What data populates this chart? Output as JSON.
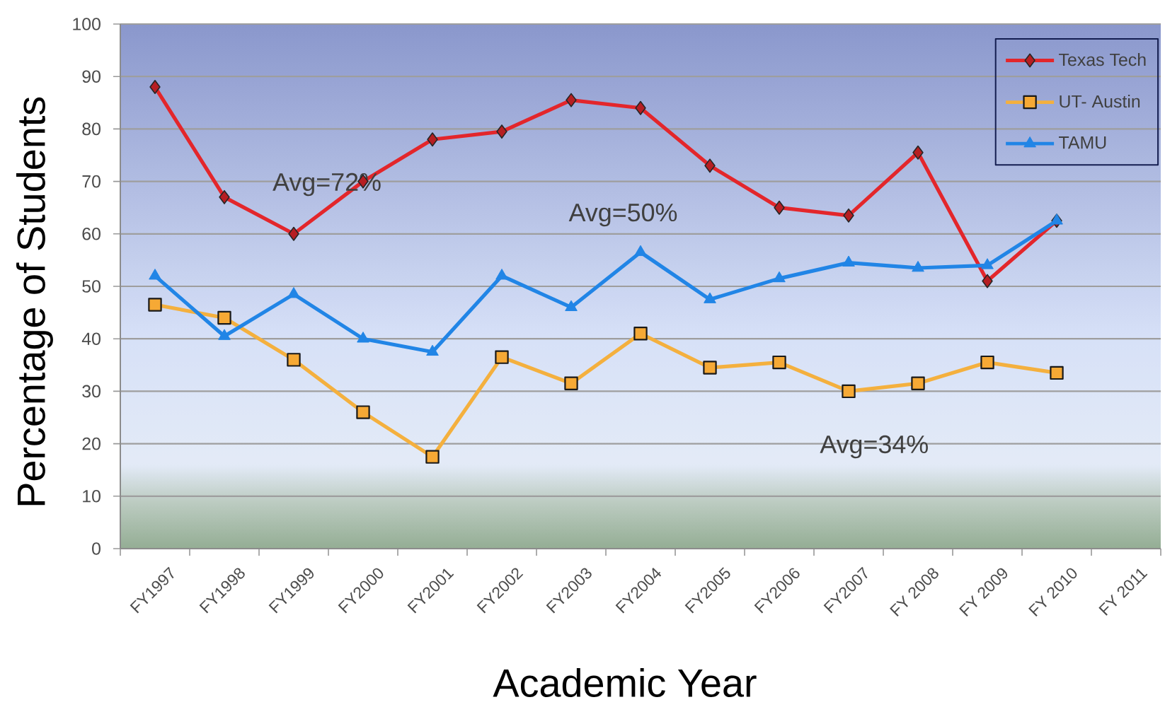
{
  "chart_data": {
    "type": "line",
    "xlabel": "Academic Year",
    "ylabel": "Percentage of Students",
    "categories": [
      "FY1997",
      "FY1998",
      "FY1999",
      "FY2000",
      "FY2001",
      "FY2002",
      "FY2003",
      "FY2004",
      "FY2005",
      "FY2006",
      "FY2007",
      "FY 2008",
      "FY 2009",
      "FY 2010",
      "FY 2011"
    ],
    "series": [
      {
        "name": "Texas Tech",
        "color": "#e3262b",
        "marker": "diamond",
        "values": [
          88,
          67,
          60,
          70,
          78,
          79.5,
          85.5,
          84,
          73,
          65,
          63.5,
          75.5,
          51,
          62.5,
          null
        ]
      },
      {
        "name": "UT- Austin",
        "color": "#f4b03e",
        "marker": "square",
        "values": [
          46.5,
          44,
          36,
          26,
          17.5,
          36.5,
          31.5,
          41,
          34.5,
          35.5,
          30,
          31.5,
          35.5,
          33.5,
          null
        ]
      },
      {
        "name": "TAMU",
        "color": "#2185e6",
        "marker": "triangle",
        "values": [
          52,
          40.5,
          48.5,
          40,
          37.5,
          52,
          46,
          56.5,
          47.5,
          51.5,
          54.5,
          53.5,
          54,
          62.5,
          null
        ]
      }
    ],
    "ylim": [
      0,
      100
    ],
    "yticks": [
      0,
      10,
      20,
      30,
      40,
      50,
      60,
      70,
      80,
      90,
      100
    ],
    "grid": "y",
    "legend": "top right",
    "annotations": [
      "Avg=72%",
      "Avg=50%",
      "Avg=34%"
    ]
  }
}
